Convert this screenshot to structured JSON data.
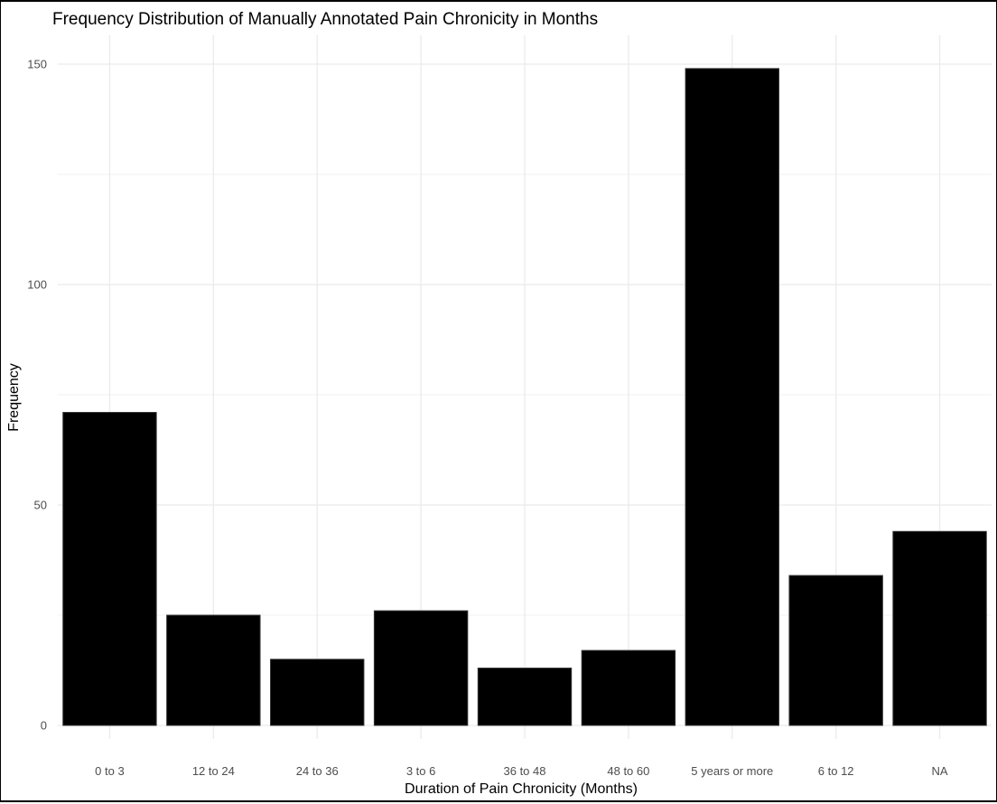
{
  "chart_data": {
    "type": "bar",
    "title": "Frequency Distribution of Manually Annotated Pain Chronicity in Months",
    "xlabel": "Duration of Pain Chronicity (Months)",
    "ylabel": "Frequency",
    "categories": [
      "0 to 3",
      "12 to 24",
      "24 to 36",
      "3 to 6",
      "36 to 48",
      "48 to 60",
      "5 years or more",
      "6 to 12",
      "NA"
    ],
    "values": [
      71,
      25,
      15,
      26,
      13,
      17,
      149,
      34,
      44
    ],
    "ylim": [
      0,
      157
    ],
    "yticks": [
      0,
      50,
      100,
      150
    ],
    "grid": true,
    "bar_color": "#000000",
    "grid_color": "#ebebeb",
    "legend": "none"
  }
}
